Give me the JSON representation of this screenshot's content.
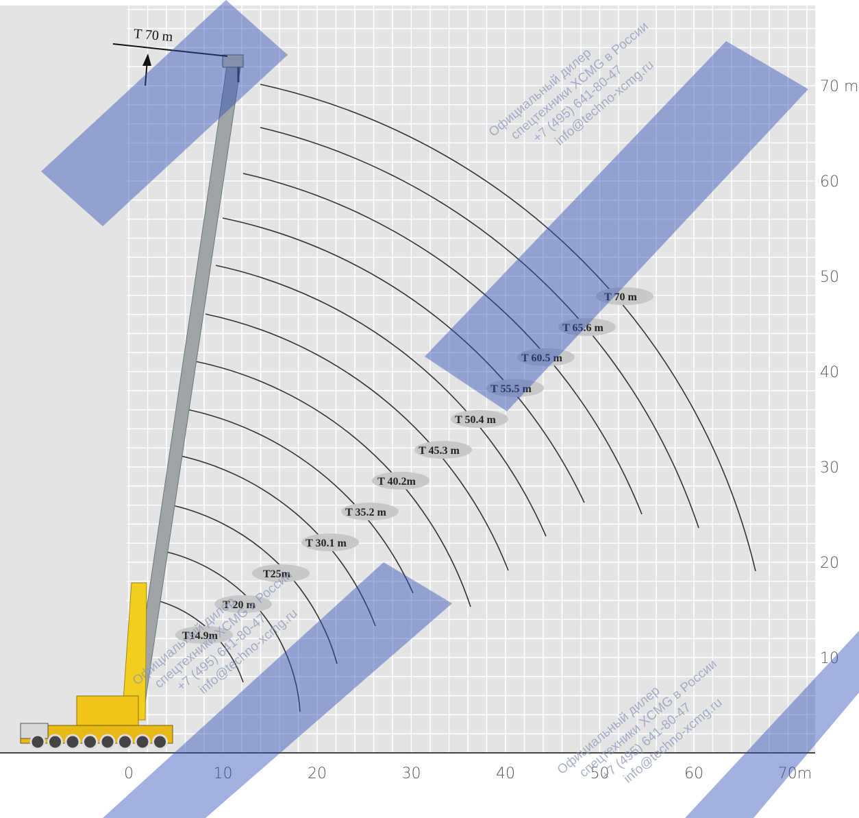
{
  "diagram": {
    "top_label": "T 70 m",
    "x_axis": {
      "ticks": [
        "0",
        "10",
        "20",
        "30",
        "40",
        "50",
        "60",
        "70m"
      ]
    },
    "y_axis": {
      "ticks": [
        "10",
        "20",
        "30",
        "40",
        "50",
        "60",
        "70 m"
      ]
    },
    "booms": [
      "T14.9m",
      "T 20 m",
      "T25m",
      "T 30.1 m",
      "T 35.2 m",
      "T 40.2m",
      "T 45.3 m",
      "T 50.4 m",
      "T 55.5 m",
      "T 60.5 m",
      "T 65.6 m",
      "T 70 m"
    ],
    "watermark": [
      "Официальный дилер",
      "спецтехники XCMG в России",
      "+7 (495) 641-80-47",
      "info@techno-xcmg.ru"
    ]
  }
}
